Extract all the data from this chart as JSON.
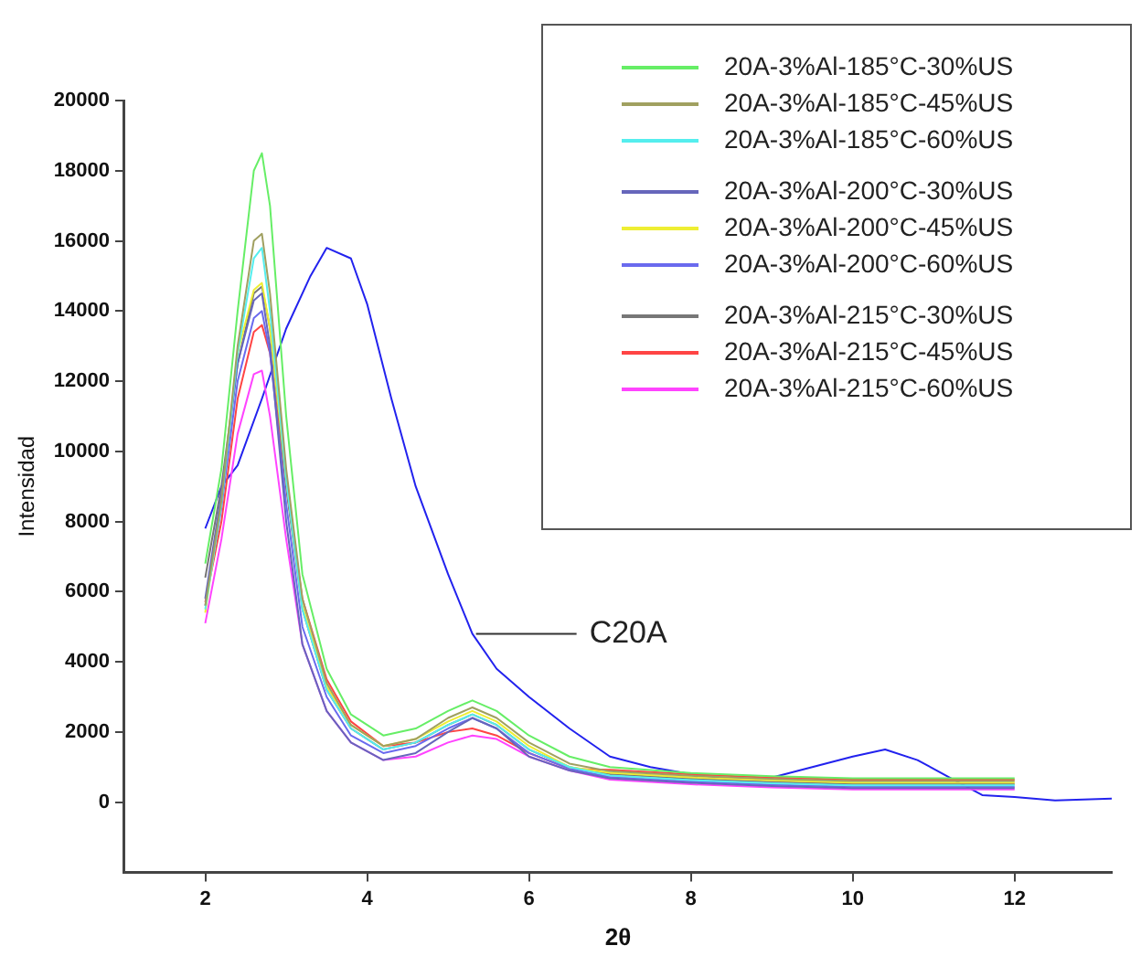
{
  "chart_data": {
    "type": "line",
    "xlabel": "2θ",
    "ylabel": "Intensidad",
    "x": [
      2,
      2.2,
      2.4,
      2.6,
      2.7,
      2.8,
      3,
      3.2,
      3.5,
      3.8,
      4.2,
      4.6,
      5,
      5.3,
      5.6,
      6,
      6.5,
      7,
      8,
      9,
      10,
      11,
      12
    ],
    "xlim": [
      1,
      13.2
    ],
    "xticks": [
      2,
      4,
      6,
      8,
      10,
      12
    ],
    "ylim": [
      -2000,
      20000
    ],
    "yticks": [
      0,
      2000,
      4000,
      6000,
      8000,
      10000,
      12000,
      14000,
      16000,
      18000,
      20000
    ],
    "grid": false,
    "legend": "top right",
    "marker": "none",
    "line_style": "solid",
    "series": [
      {
        "name": "20A-3%Al-185°C-30%US",
        "color": "#66ee66",
        "values": [
          6800,
          9500,
          14000,
          18000,
          18500,
          17000,
          11000,
          6500,
          3800,
          2500,
          1900,
          2100,
          2600,
          2900,
          2600,
          1900,
          1300,
          1000,
          830,
          740,
          680,
          680,
          680
        ]
      },
      {
        "name": "20A-3%Al-185°C-45%US",
        "color": "#a0a060",
        "values": [
          5600,
          8600,
          13000,
          16000,
          16200,
          14500,
          9500,
          5800,
          3400,
          2200,
          1600,
          1800,
          2400,
          2700,
          2400,
          1700,
          1100,
          880,
          750,
          660,
          600,
          600,
          600
        ]
      },
      {
        "name": "20A-3%Al-185°C-60%US",
        "color": "#55eeee",
        "values": [
          5500,
          8500,
          12800,
          15500,
          15800,
          14000,
          9200,
          5500,
          3200,
          2100,
          1500,
          1700,
          2200,
          2500,
          2200,
          1500,
          1000,
          760,
          630,
          540,
          480,
          480,
          480
        ]
      },
      {
        "name": "20A-3%Al-200°C-30%US",
        "color": "#6666bb",
        "values": [
          5800,
          8800,
          12500,
          14300,
          14500,
          13000,
          8000,
          4500,
          2600,
          1700,
          1200,
          1400,
          2000,
          2400,
          2100,
          1300,
          900,
          680,
          550,
          460,
          400,
          400,
          400
        ]
      },
      {
        "name": "20A-3%Al-200°C-45%US",
        "color": "#eeee33",
        "values": [
          5400,
          8600,
          12800,
          14600,
          14800,
          13500,
          9200,
          5600,
          3300,
          2200,
          1600,
          1800,
          2300,
          2600,
          2300,
          1600,
          1000,
          840,
          710,
          620,
          560,
          560,
          560
        ]
      },
      {
        "name": "20A-3%Al-200°C-60%US",
        "color": "#6a6aee",
        "values": [
          5600,
          8400,
          12000,
          13800,
          14000,
          12800,
          8500,
          5000,
          3000,
          1900,
          1400,
          1600,
          2100,
          2400,
          2100,
          1400,
          950,
          720,
          590,
          500,
          440,
          440,
          440
        ]
      },
      {
        "name": "20A-3%Al-215°C-30%US",
        "color": "#777777",
        "values": [
          6400,
          9000,
          12500,
          14500,
          14700,
          13500,
          9000,
          5500,
          3200,
          2100,
          1500,
          1700,
          2200,
          2500,
          2200,
          1500,
          1000,
          800,
          670,
          580,
          520,
          520,
          520
        ]
      },
      {
        "name": "20A-3%Al-215°C-45%US",
        "color": "#ff4444",
        "values": [
          5700,
          8000,
          11500,
          13400,
          13600,
          12800,
          9000,
          5800,
          3500,
          2300,
          1600,
          1700,
          2000,
          2100,
          1900,
          1400,
          950,
          920,
          790,
          700,
          640,
          640,
          640
        ]
      },
      {
        "name": "20A-3%Al-215°C-60%US",
        "color": "#ff44ff",
        "values": [
          5100,
          7500,
          10500,
          12200,
          12300,
          11000,
          7500,
          4500,
          2600,
          1700,
          1200,
          1300,
          1700,
          1900,
          1800,
          1300,
          900,
          640,
          510,
          420,
          360,
          360,
          360
        ]
      },
      {
        "name": "C20A",
        "color": "#2222ee",
        "x": [
          2,
          2.2,
          2.4,
          2.7,
          3,
          3.3,
          3.5,
          3.8,
          4,
          4.3,
          4.6,
          5,
          5.3,
          5.6,
          6,
          6.5,
          7,
          7.5,
          8,
          8.5,
          9,
          9.5,
          10,
          10.4,
          10.8,
          11.2,
          11.6,
          12,
          12.5,
          13.2
        ],
        "values": [
          7800,
          9000,
          9600,
          11500,
          13500,
          15000,
          15800,
          15500,
          14200,
          11500,
          9000,
          6500,
          4800,
          3800,
          3000,
          2100,
          1300,
          1000,
          800,
          650,
          700,
          1000,
          1300,
          1500,
          1200,
          700,
          200,
          150,
          50,
          100
        ]
      }
    ]
  }
}
